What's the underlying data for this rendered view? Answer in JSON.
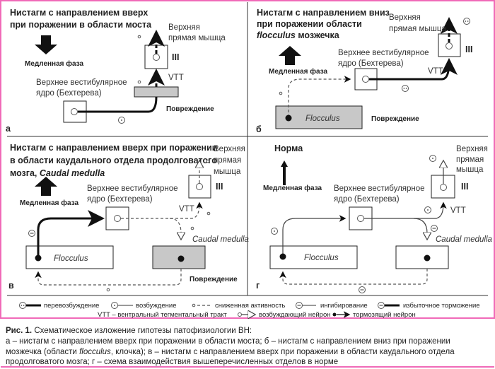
{
  "colors": {
    "frame": "#f06ab8",
    "lesion": "#c8c8c8",
    "ink": "#222222"
  },
  "panels": {
    "a": {
      "letter": "а",
      "title": [
        "Нистагм с направлением вверх",
        "при поражении в области моста"
      ],
      "slow_phase": "Медленная фаза",
      "muscle": [
        "Верхняя",
        "прямая мышца"
      ],
      "nucleus_iii": "III",
      "vtt": "VTT",
      "nucleus": [
        "Верхнее вестибулярное",
        "ядро (Бехтерева)"
      ],
      "lesion": "Повреждение"
    },
    "b": {
      "letter": "б",
      "title": [
        "Нистагм с направлением вниз",
        "при поражении области"
      ],
      "title_italic": "flocculus",
      "title_rest": " мозжечка",
      "slow_phase": "Медленная фаза",
      "muscle": [
        "Верхняя",
        "прямая мышца"
      ],
      "nucleus_iii": "III",
      "vtt": "VTT",
      "nucleus": [
        "Верхнее вестибулярное",
        "ядро (Бехтерева)"
      ],
      "flocculus": "Flocculus",
      "lesion": "Повреждение"
    },
    "c": {
      "letter": "в",
      "title": [
        "Нистагм с направлением вверх при поражении",
        "в области каудального отдела продолговатого"
      ],
      "title_prefix": "мозга, ",
      "title_italic": "Caudal medulla",
      "slow_phase": "Медленная фаза",
      "muscle": [
        "Верхняя",
        "прямая",
        "мышца"
      ],
      "nucleus_iii": "III",
      "vtt": "VTT",
      "nucleus": [
        "Верхнее вестибулярное",
        "ядро (Бехтерева)"
      ],
      "flocculus": "Flocculus",
      "caudal": "Caudal medulla",
      "lesion": "Повреждение"
    },
    "d": {
      "letter": "г",
      "title": "Норма",
      "slow_phase": "Медленная фаза",
      "muscle": [
        "Верхняя",
        "прямая",
        "мышца"
      ],
      "nucleus_iii": "III",
      "vtt": "VTT",
      "nucleus": [
        "Верхнее вестибулярное",
        "ядро (Бехтерева)"
      ],
      "flocculus": "Flocculus",
      "caudal": "Caudal medulla"
    }
  },
  "legend": {
    "row1": [
      "перевозбуждение",
      "возбуждение",
      "сниженная активность",
      "ингибирование",
      "избыточное торможение"
    ],
    "row2": [
      "VTT – вентральный тегментальный тракт",
      "возбуждающий нейрон",
      "тормозящий нейрон"
    ]
  },
  "caption": {
    "label": "Рис. 1.",
    "title": " Схематическое изложение гипотезы патофизиологии ВН:",
    "line1": "а – нистагм с направлением вверх при поражении в области моста; б – нистагм с направлением вниз при поражении",
    "line2_a": "мозжечка (области ",
    "line2_i": "flocculus",
    "line2_b": ", клочка); в – нистагм с направлением вверх при поражении в области каудального отдела",
    "line3": "продолговатого мозга; г – схема взаимодействия вышеперечисленных отделов в норме"
  }
}
